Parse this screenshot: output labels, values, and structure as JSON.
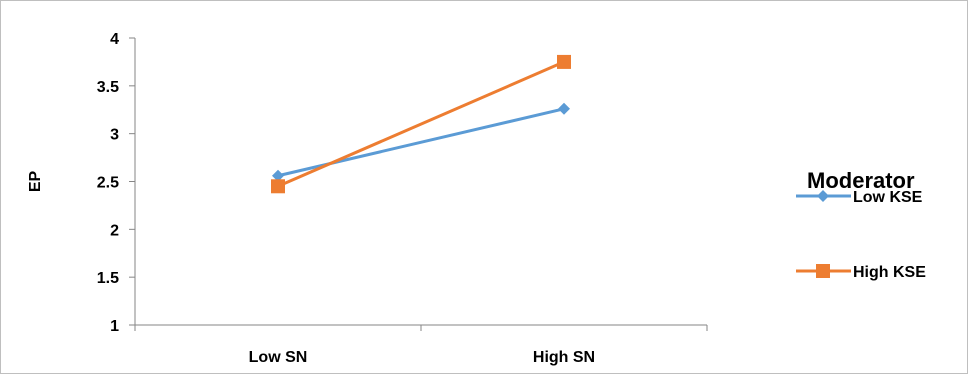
{
  "chart_data": {
    "type": "line",
    "title": "",
    "xlabel": "",
    "ylabel": "EP",
    "categories": [
      "Low SN",
      "High SN"
    ],
    "ylim": [
      1,
      4
    ],
    "yticks": [
      1,
      1.5,
      2,
      2.5,
      3,
      3.5,
      4
    ],
    "ytick_labels": [
      "1",
      "1.5",
      "2",
      "2.5",
      "3",
      "3.5",
      "4"
    ],
    "grid": false,
    "legend": {
      "title": "Moderator",
      "placement": "right"
    },
    "series": [
      {
        "name": "Low KSE",
        "values": [
          2.56,
          3.26
        ],
        "color": "#5b9bd5",
        "marker": "diamond"
      },
      {
        "name": "High KSE",
        "values": [
          2.45,
          3.75
        ],
        "color": "#ed7d31",
        "marker": "square"
      }
    ]
  }
}
